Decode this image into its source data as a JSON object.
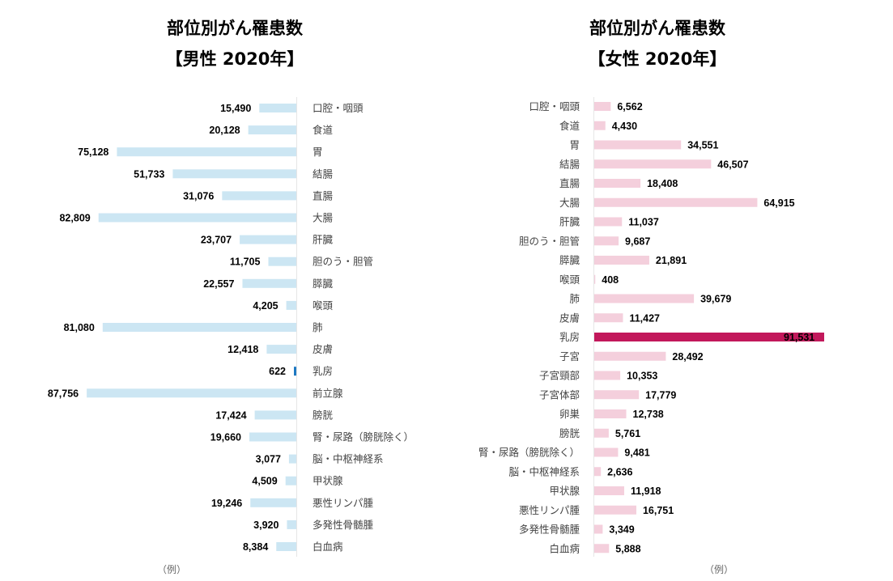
{
  "chart_data": [
    {
      "type": "bar",
      "title": "部位別がん罹患数",
      "subtitle": "【男性 2020年】",
      "note": "（例）",
      "colors": {
        "bar": "#cce6f3",
        "highlight": "#1e78c2"
      },
      "highlight_category": "乳房",
      "categories": [
        "口腔・咽頭",
        "食道",
        "胃",
        "結腸",
        "直腸",
        "大腸",
        "肝臓",
        "胆のう・胆管",
        "膵臓",
        "喉頭",
        "肺",
        "皮膚",
        "乳房",
        "前立腺",
        "膀胱",
        "腎・尿路（膀胱除く）",
        "脳・中枢神経系",
        "甲状腺",
        "悪性リンパ腫",
        "多発性骨髄腫",
        "白血病"
      ],
      "values": [
        15490,
        20128,
        75128,
        51733,
        31076,
        82809,
        23707,
        11705,
        22557,
        4205,
        81080,
        12418,
        622,
        87756,
        17424,
        19660,
        3077,
        4509,
        19246,
        3920,
        8384
      ],
      "value_labels": [
        "15,490",
        "20,128",
        "75,128",
        "51,733",
        "31,076",
        "82,809",
        "23,707",
        "11,705",
        "22,557",
        "4,205",
        "81,080",
        "12,418",
        "622",
        "87,756",
        "17,424",
        "19,660",
        "3,077",
        "4,509",
        "19,246",
        "3,920",
        "8,384"
      ],
      "xlim": [
        0,
        91531
      ]
    },
    {
      "type": "bar",
      "title": "部位別がん罹患数",
      "subtitle": "【女性 2020年】",
      "note": "（例）",
      "colors": {
        "bar": "#f4cfdc",
        "highlight": "#c2185b"
      },
      "highlight_category": "乳房",
      "categories": [
        "口腔・咽頭",
        "食道",
        "胃",
        "結腸",
        "直腸",
        "大腸",
        "肝臓",
        "胆のう・胆管",
        "膵臓",
        "喉頭",
        "肺",
        "皮膚",
        "乳房",
        "子宮",
        "子宮頸部",
        "子宮体部",
        "卵巣",
        "膀胱",
        "腎・尿路（膀胱除く）",
        "脳・中枢神経系",
        "甲状腺",
        "悪性リンパ腫",
        "多発性骨髄腫",
        "白血病"
      ],
      "values": [
        6562,
        4430,
        34551,
        46507,
        18408,
        64915,
        11037,
        9687,
        21891,
        408,
        39679,
        11427,
        91531,
        28492,
        10353,
        17779,
        12738,
        5761,
        9481,
        2636,
        11918,
        16751,
        3349,
        5888
      ],
      "value_labels": [
        "6,562",
        "4,430",
        "34,551",
        "46,507",
        "18,408",
        "64,915",
        "11,037",
        "9,687",
        "21,891",
        "408",
        "39,679",
        "11,427",
        "91,531",
        "28,492",
        "10,353",
        "17,779",
        "12,738",
        "5,761",
        "9,481",
        "2,636",
        "11,918",
        "16,751",
        "3,349",
        "5,888"
      ],
      "xlim": [
        0,
        91531
      ]
    }
  ]
}
